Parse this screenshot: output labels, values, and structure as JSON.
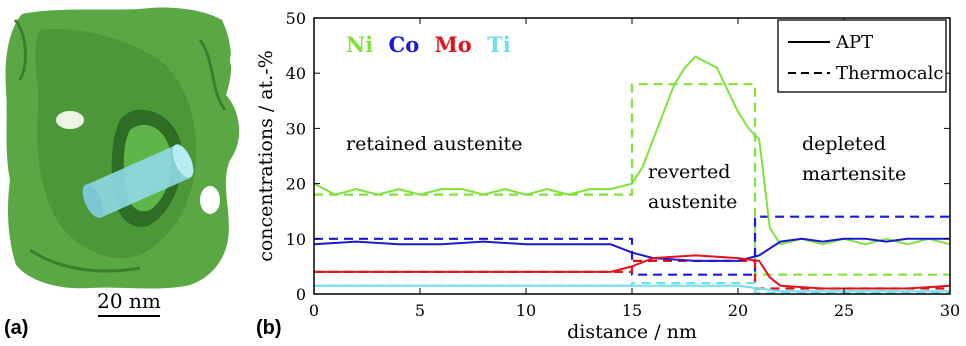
{
  "panel_a": {
    "label": "(a)",
    "scale_bar_label": "20 nm"
  },
  "panel_b": {
    "label": "(b)"
  },
  "colors": {
    "Ni": "#7fe33a",
    "Co": "#1a1ad6",
    "Mo": "#e0141a",
    "Ti": "#6fe0ef",
    "frame": "#000000",
    "precipitate": "#4f9f3a",
    "cylinder": "#8fd8e6"
  },
  "chart_data": {
    "type": "line",
    "title": "",
    "xlabel": "distance /  nm",
    "ylabel": "concentrations /  at.-%",
    "xlim": [
      0,
      30
    ],
    "ylim": [
      0,
      50
    ],
    "xticks": [
      0,
      5,
      10,
      15,
      20,
      25,
      30
    ],
    "yticks": [
      0,
      10,
      20,
      30,
      40,
      50
    ],
    "grid": false,
    "element_labels": [
      "Ni",
      "Co",
      "Mo",
      "Ti"
    ],
    "legend": {
      "position": "top-right",
      "entries": [
        {
          "label": "APT",
          "style": "solid"
        },
        {
          "label": "Thermocalc",
          "style": "dashed"
        }
      ]
    },
    "annotations": [
      {
        "text": "retained austenite",
        "lines": [
          "retained austenite"
        ]
      },
      {
        "text": "reverted austenite",
        "lines": [
          "reverted",
          "austenite"
        ]
      },
      {
        "text": "depleted martensite",
        "lines": [
          "depleted",
          "martensite"
        ]
      }
    ],
    "series": [
      {
        "name": "Ni",
        "style": "solid",
        "color": "#7fe33a",
        "x": [
          0,
          1,
          2,
          3,
          4,
          5,
          6,
          7,
          8,
          9,
          10,
          11,
          12,
          13,
          14,
          15,
          15.5,
          16,
          16.5,
          17,
          17.5,
          18,
          18.5,
          19,
          19.5,
          20,
          20.5,
          21,
          21.5,
          22,
          23,
          24,
          25,
          26,
          27,
          28,
          29,
          30
        ],
        "y": [
          20,
          18,
          19,
          18,
          19,
          18,
          19,
          19,
          18,
          19,
          18,
          19,
          18,
          19,
          19,
          20,
          23,
          28,
          33,
          38,
          41,
          43,
          42,
          41,
          37,
          33,
          30,
          28,
          12,
          9,
          10,
          9,
          10,
          9,
          10,
          9,
          10,
          9
        ]
      },
      {
        "name": "Co",
        "style": "solid",
        "color": "#1a1ad6",
        "x": [
          0,
          2,
          4,
          6,
          8,
          10,
          12,
          14,
          15,
          16,
          18,
          20,
          21,
          22,
          23,
          24,
          25,
          26,
          27,
          28,
          29,
          30
        ],
        "y": [
          9,
          9.5,
          9,
          9,
          9.5,
          9,
          9,
          9,
          7.5,
          6.5,
          6,
          6,
          7,
          9.5,
          10,
          9.5,
          10,
          10,
          9.5,
          10,
          10,
          10
        ]
      },
      {
        "name": "Mo",
        "style": "solid",
        "color": "#e0141a",
        "x": [
          0,
          2,
          4,
          6,
          8,
          10,
          12,
          14,
          15,
          16,
          18,
          20,
          21,
          21.5,
          22,
          24,
          26,
          28,
          30
        ],
        "y": [
          4,
          4,
          4,
          4,
          4,
          4,
          4,
          4,
          5,
          6.5,
          7,
          6.5,
          6,
          3,
          1.5,
          1,
          1,
          1,
          1.5
        ]
      },
      {
        "name": "Ti",
        "style": "solid",
        "color": "#6fe0ef",
        "x": [
          0,
          2,
          4,
          6,
          8,
          10,
          12,
          14,
          16,
          18,
          20,
          21,
          22,
          24,
          26,
          28,
          30
        ],
        "y": [
          1.5,
          1.5,
          1.5,
          1.5,
          1.5,
          1.5,
          1.5,
          1.5,
          1.5,
          1.5,
          1.5,
          1,
          0.5,
          0.5,
          0.5,
          0.5,
          0.5
        ]
      },
      {
        "name": "Ni",
        "style": "dashed",
        "color": "#7fe33a",
        "x": [
          0,
          15,
          15,
          20.8,
          20.8,
          30
        ],
        "y": [
          18,
          18,
          38,
          38,
          3.5,
          3.5
        ]
      },
      {
        "name": "Co",
        "style": "dashed",
        "color": "#1a1ad6",
        "x": [
          0,
          15,
          15,
          20.8,
          20.8,
          30
        ],
        "y": [
          10,
          10,
          3.5,
          3.5,
          14,
          14
        ]
      },
      {
        "name": "Mo",
        "style": "dashed",
        "color": "#e0141a",
        "x": [
          0,
          15,
          15,
          20.8,
          20.8,
          30
        ],
        "y": [
          4,
          4,
          6,
          6,
          1,
          1
        ]
      },
      {
        "name": "Ti",
        "style": "dashed",
        "color": "#6fe0ef",
        "x": [
          0,
          15,
          15,
          20.8,
          20.8,
          30
        ],
        "y": [
          1.5,
          1.5,
          2,
          2,
          0.2,
          0.2
        ]
      }
    ]
  }
}
